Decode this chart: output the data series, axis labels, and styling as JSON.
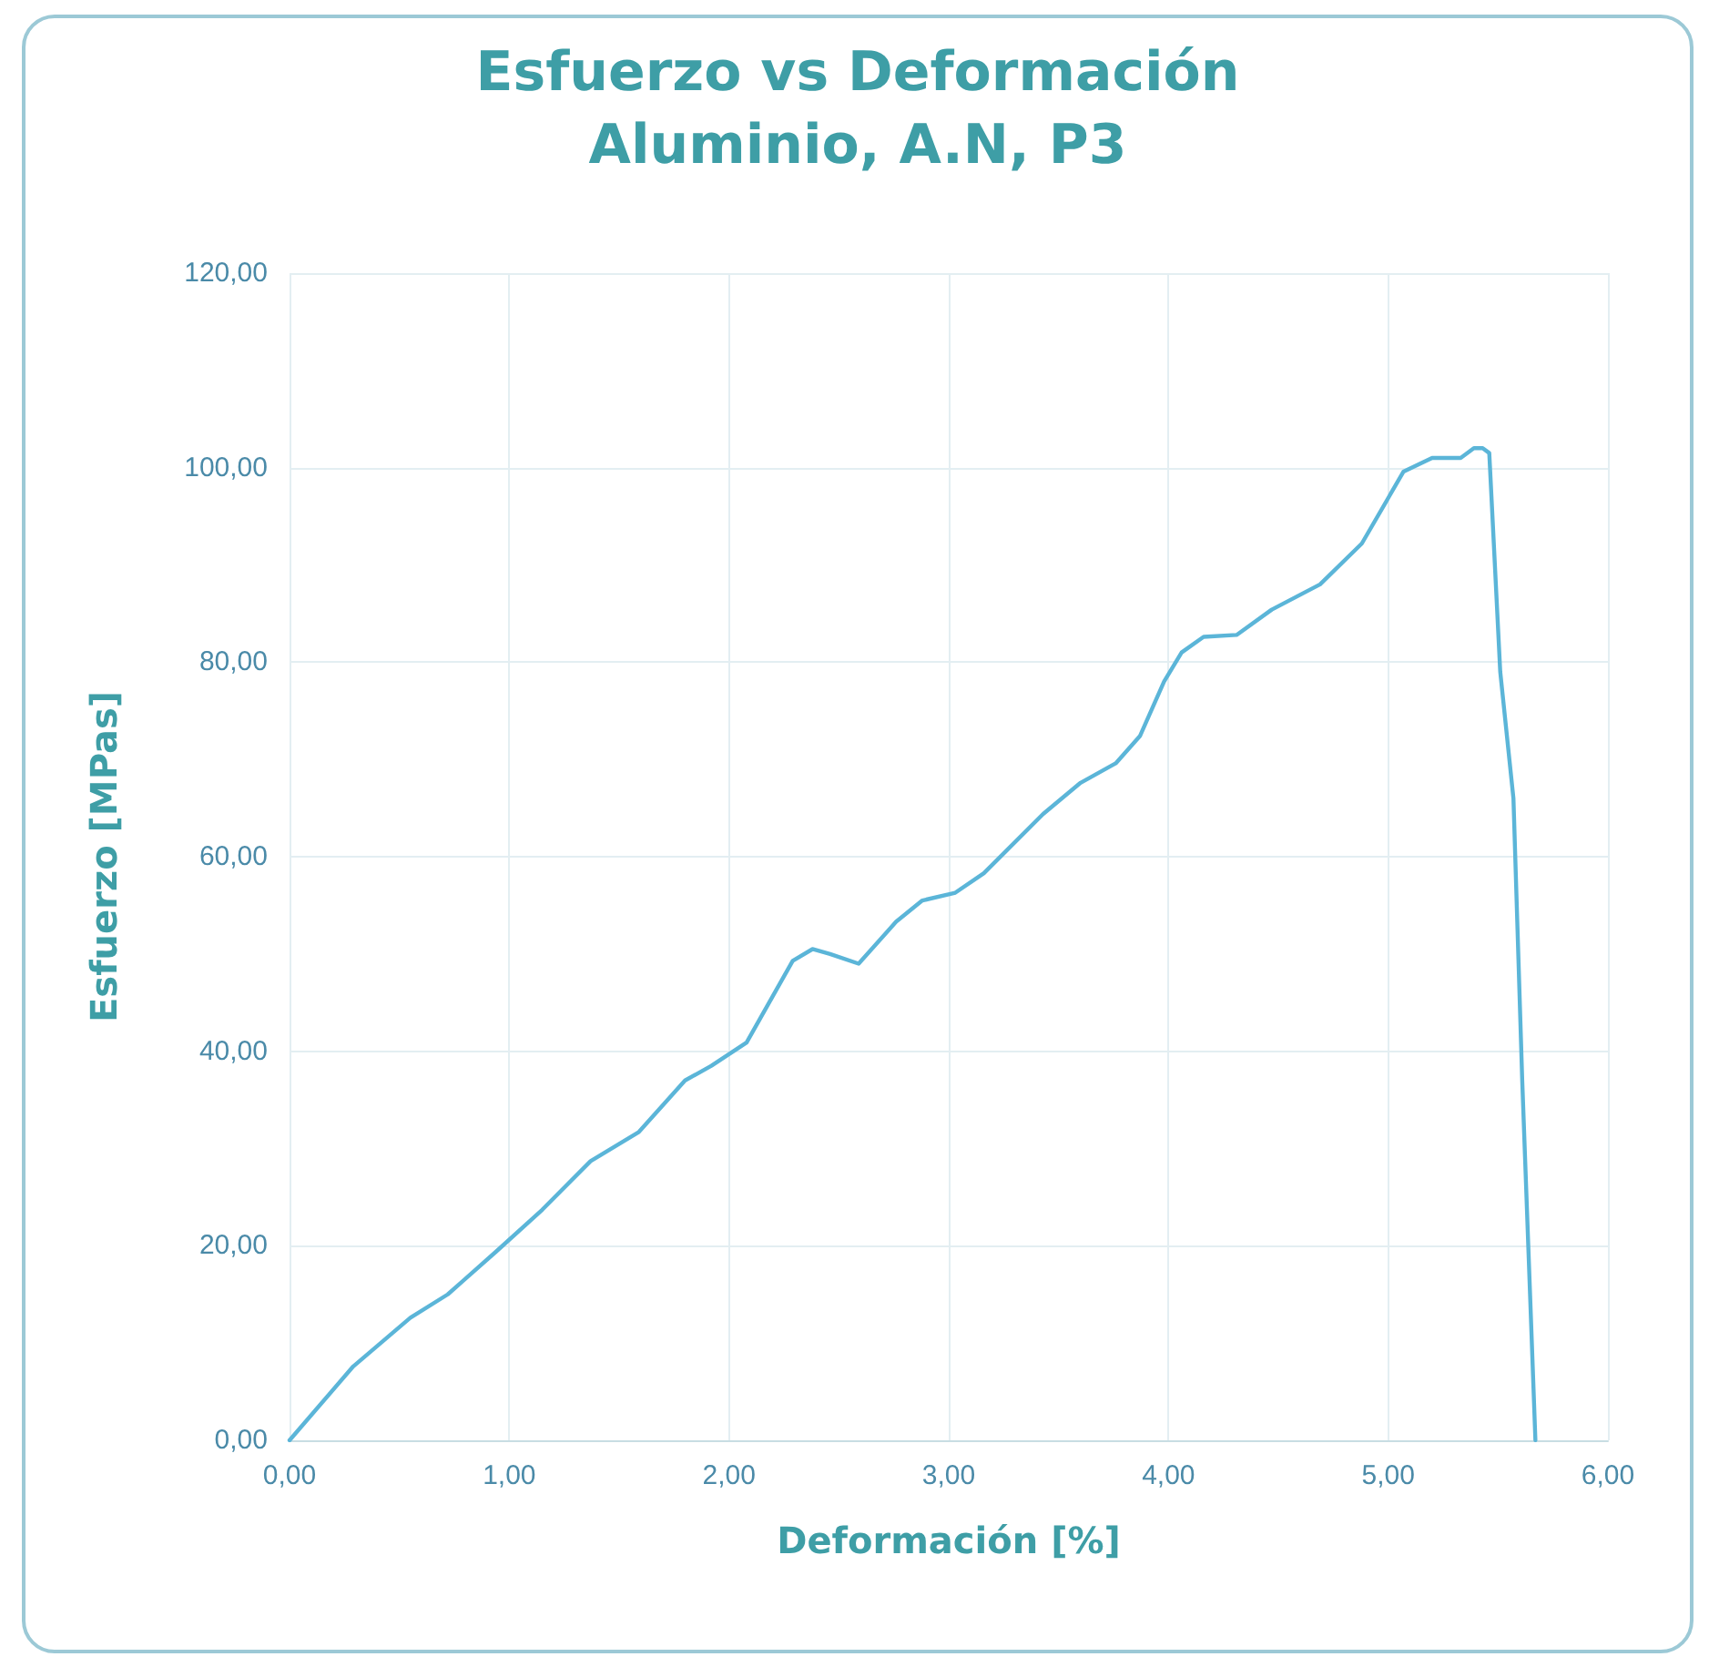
{
  "chart_data": {
    "type": "line",
    "title": "Esfuerzo vs Deformación",
    "subtitle": "Aluminio, A.N, P3",
    "xlabel": "Deformación [%]",
    "ylabel": "Esfuerzo [MPas]",
    "x": [
      0,
      0.29,
      0.55,
      0.72,
      0.94,
      1.15,
      1.37,
      1.59,
      1.8,
      1.92,
      2.08,
      2.29,
      2.38,
      2.46,
      2.59,
      2.76,
      2.88,
      3.03,
      3.16,
      3.43,
      3.6,
      3.76,
      3.87,
      3.98,
      4.06,
      4.16,
      4.31,
      4.47,
      4.69,
      4.88,
      5.07,
      5.2,
      5.33,
      5.39,
      5.43,
      5.46,
      5.51,
      5.57,
      5.61,
      5.67
    ],
    "series": [
      {
        "color": "#5bb5d8",
        "values": [
          0,
          7.6,
          12.6,
          15,
          19.4,
          23.7,
          28.7,
          31.7,
          37,
          38.5,
          40.9,
          49.3,
          50.5,
          50,
          49,
          53.3,
          55.5,
          56.3,
          58.3,
          64.4,
          67.6,
          69.6,
          72.4,
          78,
          81,
          82.6,
          82.8,
          85.4,
          88,
          92.2,
          99.6,
          101,
          101,
          102,
          102,
          101.5,
          79,
          66,
          37,
          0
        ]
      }
    ],
    "xlim": [
      0,
      6
    ],
    "xticks": [
      {
        "value": 0,
        "label": "0,00"
      },
      {
        "value": 1,
        "label": "1,00"
      },
      {
        "value": 2,
        "label": "2,00"
      },
      {
        "value": 3,
        "label": "3,00"
      },
      {
        "value": 4,
        "label": "4,00"
      },
      {
        "value": 5,
        "label": "5,00"
      },
      {
        "value": 6,
        "label": "6,00"
      }
    ],
    "ylim": [
      0,
      120
    ],
    "yticks": [
      {
        "value": 0,
        "label": "0,00"
      },
      {
        "value": 20,
        "label": "20,00"
      },
      {
        "value": 40,
        "label": "40,00"
      },
      {
        "value": 60,
        "label": "60,00"
      },
      {
        "value": 80,
        "label": "80,00"
      },
      {
        "value": 100,
        "label": "100,00"
      },
      {
        "value": 120,
        "label": "120,00"
      }
    ],
    "grid": true,
    "marker": "none",
    "line_style": "solid"
  }
}
